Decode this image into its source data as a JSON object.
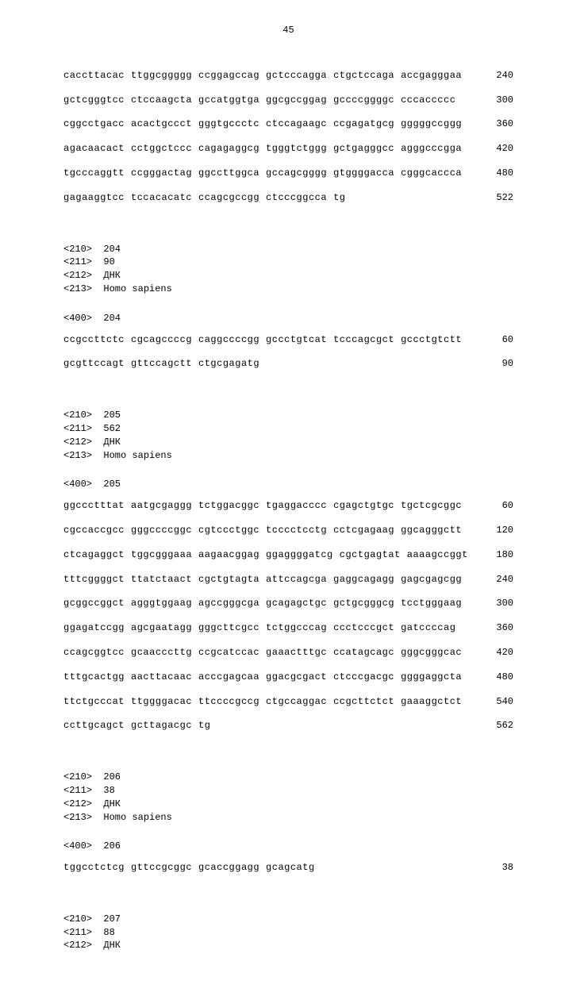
{
  "page_number": "45",
  "font": {
    "family": "Courier New, monospace",
    "size_pt": 9,
    "color": "#000000"
  },
  "background_color": "#ffffff",
  "blocks": [
    {
      "type": "sequence",
      "lines": [
        {
          "groups": [
            "caccttacac",
            "ttggcggggg",
            "ccggagccag",
            "gctcccagga",
            "ctgctccaga",
            "accgagggaa"
          ],
          "pos": "240"
        },
        {
          "groups": [
            "gctcgggtcc",
            "ctccaagcta",
            "gccatggtga",
            "ggcgccggag",
            "gccccggggc",
            "cccaccccc"
          ],
          "pos": "300"
        },
        {
          "groups": [
            "cggcctgacc",
            "acactgccct",
            "gggtgccctc",
            "ctccagaagc",
            "ccgagatgcg",
            "gggggccggg"
          ],
          "pos": "360"
        },
        {
          "groups": [
            "agacaacact",
            "cctggctccc",
            "cagagaggcg",
            "tgggtctggg",
            "gctgagggcc",
            "agggcccgga"
          ],
          "pos": "420"
        },
        {
          "groups": [
            "tgcccaggtt",
            "ccgggactag",
            "ggccttggca",
            "gccagcgggg",
            "gtggggacca",
            "cgggcaccca"
          ],
          "pos": "480"
        },
        {
          "groups": [
            "gagaaggtcc",
            "tccacacatc",
            "ccagcgccgg",
            "ctcccggcca",
            "tg"
          ],
          "pos": "522"
        }
      ]
    },
    {
      "type": "header",
      "lines": [
        "<210>  204",
        "<211>  90",
        "<212>  ДНК",
        "<213>  Homo sapiens"
      ]
    },
    {
      "type": "header",
      "lines": [
        "<400>  204"
      ]
    },
    {
      "type": "sequence",
      "lines": [
        {
          "groups": [
            "ccgccttctc",
            "cgcagccccg",
            "caggccccgg",
            "gccctgtcat",
            "tcccagcgct",
            "gccctgtctt"
          ],
          "pos": "60"
        },
        {
          "groups": [
            "gcgttccagt",
            "gttccagctt",
            "ctgcgagatg"
          ],
          "pos": "90"
        }
      ]
    },
    {
      "type": "header",
      "lines": [
        "<210>  205",
        "<211>  562",
        "<212>  ДНК",
        "<213>  Homo sapiens"
      ]
    },
    {
      "type": "header",
      "lines": [
        "<400>  205"
      ]
    },
    {
      "type": "sequence",
      "lines": [
        {
          "groups": [
            "ggccctttat",
            "aatgcgaggg",
            "tctggacggc",
            "tgaggacccc",
            "cgagctgtgc",
            "tgctcgcggc"
          ],
          "pos": "60"
        },
        {
          "groups": [
            "cgccaccgcc",
            "gggccccggc",
            "cgtccctggc",
            "tcccctcctg",
            "cctcgagaag",
            "ggcagggctt"
          ],
          "pos": "120"
        },
        {
          "groups": [
            "ctcagaggct",
            "tggcgggaaa",
            "aagaacggag",
            "ggaggggatcg",
            "cgctgagtat",
            "aaaagccggt"
          ],
          "pos": "180"
        },
        {
          "groups": [
            "tttcggggct",
            "ttatctaact",
            "cgctgtagta",
            "attccagcga",
            "gaggcagagg",
            "gagcgagcgg"
          ],
          "pos": "240"
        },
        {
          "groups": [
            "gcggccggct",
            "agggtggaag",
            "agccgggcga",
            "gcagagctgc",
            "gctgcgggcg",
            "tcctgggaag"
          ],
          "pos": "300"
        },
        {
          "groups": [
            "ggagatccgg",
            "agcgaatagg",
            "gggcttcgcc",
            "tctggcccag",
            "ccctcccgct",
            "gatccccag"
          ],
          "pos": "360"
        },
        {
          "groups": [
            "ccagcggtcc",
            "gcaacccttg",
            "ccgcatccac",
            "gaaactttgc",
            "ccatagcagc",
            "gggcgggcac"
          ],
          "pos": "420"
        },
        {
          "groups": [
            "tttgcactgg",
            "aacttacaac",
            "acccgagcaa",
            "ggacgcgact",
            "ctcccgacgc",
            "ggggaggcta"
          ],
          "pos": "480"
        },
        {
          "groups": [
            "ttctgcccat",
            "ttggggacac",
            "ttccccgccg",
            "ctgccaggac",
            "ccgcttctct",
            "gaaaggctct"
          ],
          "pos": "540"
        },
        {
          "groups": [
            "ccttgcagct",
            "gcttagacgc",
            "tg"
          ],
          "pos": "562"
        }
      ]
    },
    {
      "type": "header",
      "lines": [
        "<210>  206",
        "<211>  38",
        "<212>  ДНК",
        "<213>  Homo sapiens"
      ]
    },
    {
      "type": "header",
      "lines": [
        "<400>  206"
      ]
    },
    {
      "type": "sequence",
      "lines": [
        {
          "groups": [
            "tggcctctcg",
            "gttccgcggc",
            "gcaccggagg",
            "gcagcatg"
          ],
          "pos": "38"
        }
      ]
    },
    {
      "type": "header",
      "lines": [
        "<210>  207",
        "<211>  88",
        "<212>  ДНК"
      ]
    }
  ]
}
